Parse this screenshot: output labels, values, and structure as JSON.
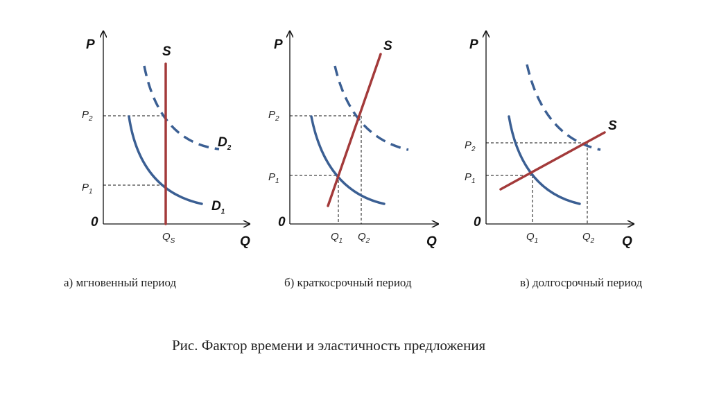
{
  "panels": [
    {
      "y_axis_label": "P",
      "x_axis_label": "Q",
      "origin_label": "0",
      "supply_label": "S",
      "demand1_label": "D",
      "demand1_sub": "1",
      "demand2_label": "D",
      "demand2_sub": "2",
      "p2_label": "P",
      "p2_sub": "2",
      "p1_label": "P",
      "p1_sub": "1",
      "q_label": "Q",
      "q_sub": "S",
      "caption": "а) мгновенный период"
    },
    {
      "y_axis_label": "P",
      "x_axis_label": "Q",
      "origin_label": "0",
      "supply_label": "S",
      "p2_label": "P",
      "p2_sub": "2",
      "p1_label": "P",
      "p1_sub": "1",
      "q1_label": "Q",
      "q1_sub": "1",
      "q2_label": "Q",
      "q2_sub": "2",
      "caption": "б) краткосрочный период"
    },
    {
      "y_axis_label": "P",
      "x_axis_label": "Q",
      "origin_label": "0",
      "supply_label": "S",
      "p2_label": "P",
      "p2_sub": "2",
      "p1_label": "P",
      "p1_sub": "1",
      "q1_label": "Q",
      "q1_sub": "1",
      "q2_label": "Q",
      "q2_sub": "2",
      "caption": "в) долгосрочный период"
    }
  ],
  "figure_title": "Рис. Фактор времени и эластичность предложения",
  "colors": {
    "demand": "#3b5f93",
    "supply": "#a33a3a"
  }
}
